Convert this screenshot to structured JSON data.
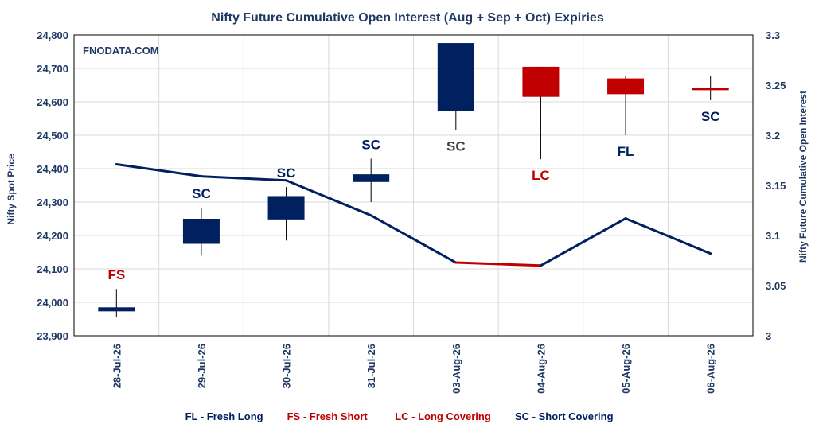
{
  "chart_data": {
    "type": "candlestick+line",
    "title": "Nifty Future Cumulative Open Interest (Aug + Sep + Oct) Expiries",
    "watermark": "FNODATA.COM",
    "ylabel_left": "Nifty Spot Price",
    "ylabel_right": "Nifty Future Cumulative Open Interest",
    "y_left_range": [
      23900,
      24800
    ],
    "y_left_ticks": [
      "23,900",
      "24,000",
      "24,100",
      "24,200",
      "24,300",
      "24,400",
      "24,500",
      "24,600",
      "24,700",
      "24,800"
    ],
    "y_right_range": [
      3.0,
      3.3
    ],
    "y_right_ticks": [
      "3",
      "3.05",
      "3.1",
      "3.15",
      "3.2",
      "3.25",
      "3.3"
    ],
    "categories": [
      "28-Jul-26",
      "29-Jul-26",
      "30-Jul-26",
      "31-Jul-26",
      "03-Aug-26",
      "04-Aug-26",
      "05-Aug-26",
      "06-Aug-26"
    ],
    "candles": [
      {
        "open": 23985,
        "close": 23973,
        "high": 24040,
        "low": 23955,
        "label": "FS",
        "color": "#002060",
        "label_color": "#C00000",
        "label_pos": "above"
      },
      {
        "open": 24175,
        "close": 24250,
        "high": 24283,
        "low": 24140,
        "label": "SC",
        "color": "#002060",
        "label_color": "#002060",
        "label_pos": "above"
      },
      {
        "open": 24248,
        "close": 24318,
        "high": 24345,
        "low": 24185,
        "label": "SC",
        "color": "#002060",
        "label_color": "#002060",
        "label_pos": "above"
      },
      {
        "open": 24360,
        "close": 24383,
        "high": 24430,
        "low": 24300,
        "label": "SC",
        "color": "#002060",
        "label_color": "#002060",
        "label_pos": "above"
      },
      {
        "open": 24572,
        "close": 24776,
        "high": 24776,
        "low": 24515,
        "label": "SC",
        "color": "#002060",
        "label_color": "#404040",
        "label_pos": "below"
      },
      {
        "open": 24705,
        "close": 24615,
        "high": 24705,
        "low": 24428,
        "label": "LC",
        "color": "#C00000",
        "label_color": "#C00000",
        "label_pos": "below"
      },
      {
        "open": 24670,
        "close": 24623,
        "high": 24678,
        "low": 24500,
        "label": "FL",
        "color": "#C00000",
        "label_color": "#002060",
        "label_pos": "below"
      },
      {
        "open": 24642,
        "close": 24637,
        "high": 24678,
        "low": 24605,
        "label": "SC",
        "color": "#C00000",
        "label_color": "#002060",
        "label_pos": "below"
      }
    ],
    "oi_series": {
      "values": [
        3.171,
        3.159,
        3.155,
        3.12,
        3.073,
        3.07,
        3.117,
        3.082
      ],
      "colors": [
        "#002060",
        "#002060",
        "#002060",
        "#002060",
        "#C00000",
        "#002060",
        "#002060"
      ]
    },
    "legend": [
      {
        "text": "FL - Fresh Long",
        "color": "#002060"
      },
      {
        "text": "FS - Fresh Short",
        "color": "#C00000"
      },
      {
        "text": "LC - Long Covering",
        "color": "#C00000"
      },
      {
        "text": "SC - Short Covering",
        "color": "#002060"
      }
    ],
    "grid": true,
    "legend_position": "bottom"
  }
}
